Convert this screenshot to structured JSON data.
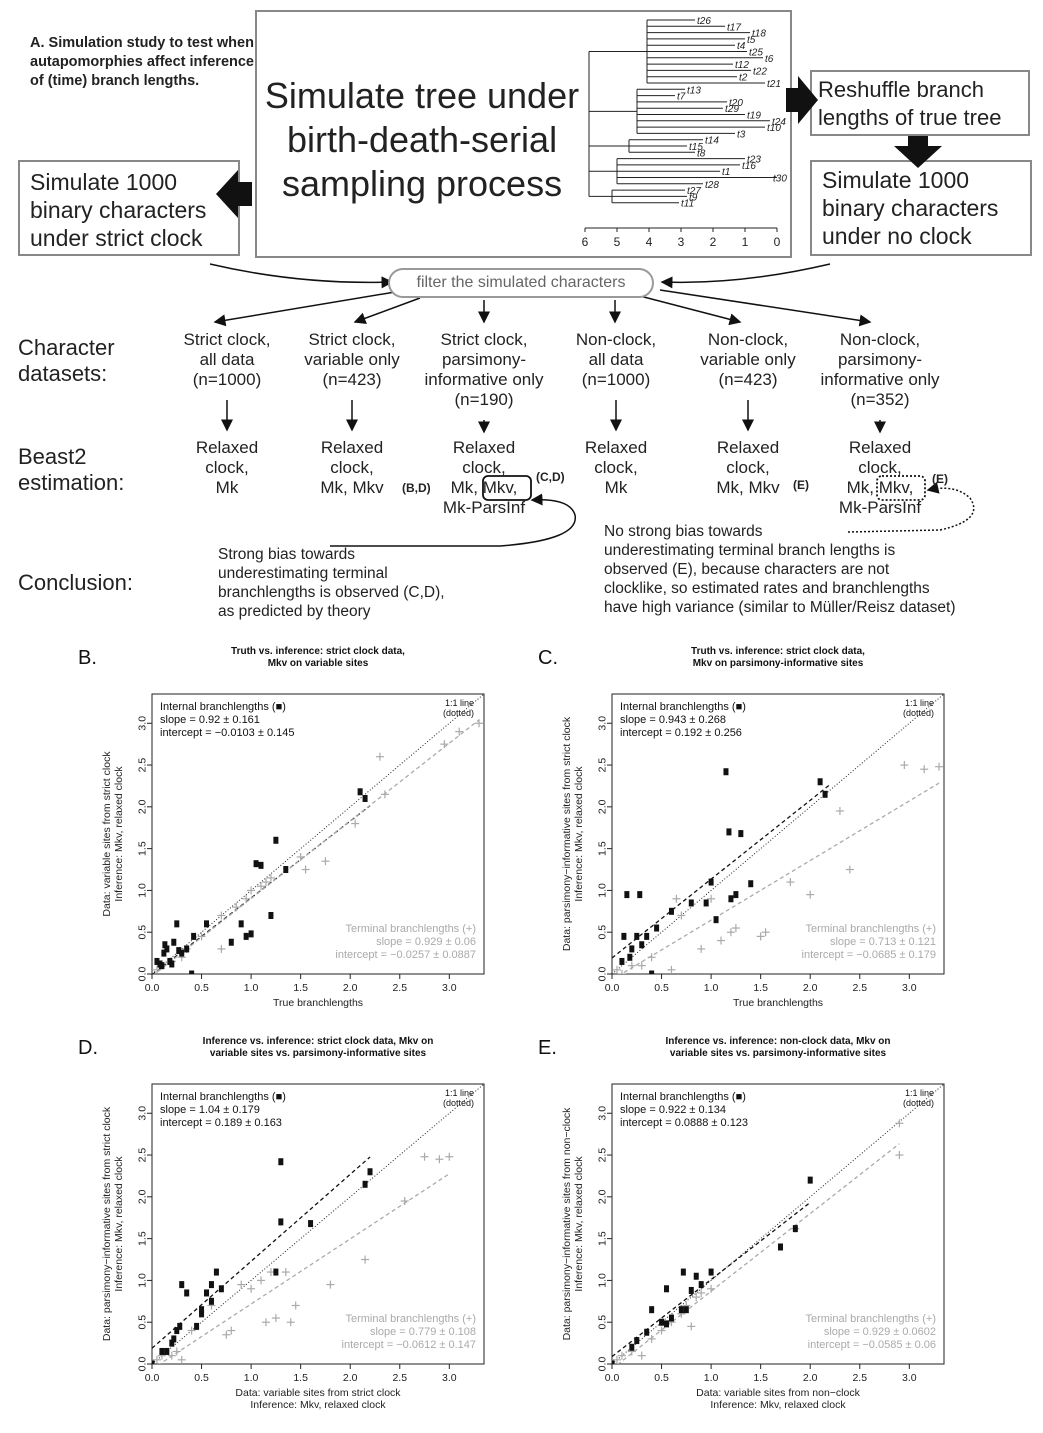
{
  "section_a_title": "A. Simulation study to test when autapomorphies affect inference of (time) branch lengths.",
  "box_simulate_tree": "Simulate tree under birth-death-serial sampling process",
  "box_strict": "Simulate 1000 binary characters under strict clock",
  "box_reshuffle": "Reshuffle branch lengths of true tree",
  "box_noclock": "Simulate 1000 binary characters under no clock",
  "filter_label": "filter the simulated characters",
  "tree_tips": [
    "t26",
    "t17",
    "t18",
    "t5",
    "t4",
    "t25",
    "t6",
    "t12",
    "t22",
    "t2",
    "t21",
    "t13",
    "t7",
    "t20",
    "t29",
    "t19",
    "t24",
    "t10",
    "t3",
    "t14",
    "t15",
    "t8",
    "t23",
    "t16",
    "t1",
    "t30",
    "t28",
    "t27",
    "t9",
    "t11"
  ],
  "tree_axis": [
    "6",
    "5",
    "4",
    "3",
    "2",
    "1",
    "0"
  ],
  "row_labels": {
    "datasets": "Character datasets:",
    "beast": "Beast2 estimation:",
    "conclusion": "Conclusion:"
  },
  "datasets": [
    {
      "l1": "Strict clock,",
      "l2": "all data",
      "l3": "(n=1000)",
      "l4": ""
    },
    {
      "l1": "Strict clock,",
      "l2": "variable only",
      "l3": "(n=423)",
      "l4": ""
    },
    {
      "l1": "Strict clock,",
      "l2": "parsimony-",
      "l3": "informative only",
      "l4": "(n=190)"
    },
    {
      "l1": "Non-clock,",
      "l2": "all data",
      "l3": "(n=1000)",
      "l4": ""
    },
    {
      "l1": "Non-clock,",
      "l2": "variable only",
      "l3": "(n=423)",
      "l4": ""
    },
    {
      "l1": "Non-clock,",
      "l2": "parsimony-",
      "l3": "informative only",
      "l4": "(n=352)"
    }
  ],
  "estimations": [
    {
      "l1": "Relaxed",
      "l2": "clock,",
      "l3": "Mk",
      "l4": "",
      "sup": ""
    },
    {
      "l1": "Relaxed",
      "l2": "clock,",
      "l3": "Mk, Mkv",
      "l4": "",
      "sup": "(B,D)"
    },
    {
      "l1": "Relaxed",
      "l2": "clock,",
      "l3": "Mk, Mkv,",
      "l4": "Mk-ParsInf",
      "sup": "(C,D)"
    },
    {
      "l1": "Relaxed",
      "l2": "clock,",
      "l3": "Mk",
      "l4": "",
      "sup": ""
    },
    {
      "l1": "Relaxed",
      "l2": "clock,",
      "l3": "Mk, Mkv",
      "l4": "",
      "sup": "(E)"
    },
    {
      "l1": "Relaxed",
      "l2": "clock,",
      "l3": "Mk, Mkv,",
      "l4": "Mk-ParsInf",
      "sup": "(E)"
    }
  ],
  "conclusion_left": [
    "Strong bias towards",
    "underestimating terminal",
    "branchlengths is observed (C,D),",
    "as predicted by theory"
  ],
  "conclusion_right": [
    "No strong bias towards",
    "underestimating terminal branch lengths is",
    "observed (E), because characters are not",
    "clocklike, so estimated rates and branchlengths",
    "have high variance (similar to Müller/Reisz dataset)"
  ],
  "plots": [
    {
      "id": "B",
      "letter": "B.",
      "title1": "Truth vs. inference: strict clock data,",
      "title2": "Mkv on variable sites",
      "ylab1": "Data: variable sites from strict clock",
      "ylab2": "Inference: Mkv, relaxed clock",
      "xlab1": "True branchlengths",
      "xlab2": "",
      "internal": {
        "label": "Internal branchlengths (■)",
        "slope": "slope = 0.92 ± 0.161",
        "intercept": "intercept = −0.0103 ± 0.145"
      },
      "terminal": {
        "label": "Terminal branchlengths (+)",
        "slope": "slope = 0.929 ± 0.06",
        "intercept": "intercept = −0.0257 ± 0.0887"
      },
      "line11": [
        "1:1 line",
        "(dotted)"
      ],
      "xticks": [
        "0.0",
        "0.5",
        "1.0",
        "1.5",
        "2.0",
        "2.5",
        "3.0"
      ],
      "yticks": [
        "0.0",
        "0.5",
        "1.0",
        "1.5",
        "2.0",
        "2.5",
        "3.0"
      ],
      "xmax": 3.35,
      "ymax": 3.35,
      "fit_int": [
        0.92,
        -0.0103
      ],
      "fit_term": [
        0.929,
        -0.0257
      ],
      "int_range": [
        0,
        2.2
      ],
      "term_range": [
        0,
        3.3
      ],
      "internal_pts": [
        [
          0.05,
          0.15
        ],
        [
          0.08,
          0.12
        ],
        [
          0.1,
          0.1
        ],
        [
          0.12,
          0.25
        ],
        [
          0.13,
          0.35
        ],
        [
          0.15,
          0.3
        ],
        [
          0.18,
          0.15
        ],
        [
          0.2,
          0.12
        ],
        [
          0.22,
          0.38
        ],
        [
          0.25,
          0.6
        ],
        [
          0.27,
          0.28
        ],
        [
          0.3,
          0.25
        ],
        [
          0.35,
          0.3
        ],
        [
          0.4,
          0.0
        ],
        [
          0.42,
          0.45
        ],
        [
          0.55,
          0.6
        ],
        [
          0.8,
          0.38
        ],
        [
          0.9,
          0.6
        ],
        [
          0.95,
          0.45
        ],
        [
          1.0,
          0.48
        ],
        [
          1.05,
          1.32
        ],
        [
          1.1,
          1.3
        ],
        [
          1.2,
          0.7
        ],
        [
          1.25,
          1.6
        ],
        [
          1.35,
          1.25
        ],
        [
          2.1,
          2.18
        ],
        [
          2.15,
          2.1
        ]
      ],
      "terminal_pts": [
        [
          0.05,
          0.05
        ],
        [
          0.1,
          0.1
        ],
        [
          0.2,
          0.15
        ],
        [
          0.3,
          0.2
        ],
        [
          0.35,
          0.3
        ],
        [
          0.5,
          0.45
        ],
        [
          0.7,
          0.3
        ],
        [
          0.7,
          0.7
        ],
        [
          0.85,
          0.8
        ],
        [
          0.95,
          0.9
        ],
        [
          1.0,
          1.0
        ],
        [
          1.1,
          1.05
        ],
        [
          1.15,
          1.1
        ],
        [
          1.2,
          1.15
        ],
        [
          1.5,
          1.4
        ],
        [
          1.55,
          1.25
        ],
        [
          1.75,
          1.35
        ],
        [
          2.05,
          1.8
        ],
        [
          2.3,
          2.6
        ],
        [
          2.35,
          2.15
        ],
        [
          2.95,
          2.75
        ],
        [
          3.1,
          2.9
        ],
        [
          3.3,
          3.0
        ]
      ]
    },
    {
      "id": "C",
      "letter": "C.",
      "title1": "Truth vs. inference: strict clock data,",
      "title2": "Mkv on parsimony-informative sites",
      "ylab1": "Data: parsimony−informative sites from strict clock",
      "ylab2": "Inference: Mkv, relaxed clock",
      "xlab1": "True branchlengths",
      "xlab2": "",
      "internal": {
        "label": "Internal branchlengths (■)",
        "slope": "slope = 0.943 ± 0.268",
        "intercept": "intercept = 0.192 ± 0.256"
      },
      "terminal": {
        "label": "Terminal branchlengths (+)",
        "slope": "slope = 0.713 ± 0.121",
        "intercept": "intercept = −0.0685 ± 0.179"
      },
      "line11": [
        "1:1 line",
        "(dotted)"
      ],
      "xticks": [
        "0.0",
        "0.5",
        "1.0",
        "1.5",
        "2.0",
        "2.5",
        "3.0"
      ],
      "yticks": [
        "0.0",
        "0.5",
        "1.0",
        "1.5",
        "2.0",
        "2.5",
        "3.0"
      ],
      "xmax": 3.35,
      "ymax": 3.35,
      "fit_int": [
        0.943,
        0.192
      ],
      "fit_term": [
        0.713,
        -0.0685
      ],
      "int_range": [
        0,
        2.2
      ],
      "term_range": [
        0,
        3.3
      ],
      "internal_pts": [
        [
          0.1,
          0.15
        ],
        [
          0.12,
          0.45
        ],
        [
          0.15,
          0.95
        ],
        [
          0.18,
          0.2
        ],
        [
          0.2,
          0.3
        ],
        [
          0.25,
          0.45
        ],
        [
          0.28,
          0.95
        ],
        [
          0.3,
          0.35
        ],
        [
          0.35,
          0.45
        ],
        [
          0.4,
          0.0
        ],
        [
          0.45,
          0.55
        ],
        [
          0.6,
          0.75
        ],
        [
          0.8,
          0.85
        ],
        [
          0.95,
          0.85
        ],
        [
          1.0,
          1.1
        ],
        [
          1.05,
          0.65
        ],
        [
          1.15,
          2.42
        ],
        [
          1.18,
          1.7
        ],
        [
          1.2,
          0.9
        ],
        [
          1.25,
          0.95
        ],
        [
          1.3,
          1.68
        ],
        [
          1.4,
          1.08
        ],
        [
          2.1,
          2.3
        ],
        [
          2.15,
          2.15
        ]
      ],
      "terminal_pts": [
        [
          0.05,
          0.05
        ],
        [
          0.1,
          0.0
        ],
        [
          0.2,
          0.1
        ],
        [
          0.3,
          0.1
        ],
        [
          0.4,
          0.2
        ],
        [
          0.6,
          0.05
        ],
        [
          0.65,
          0.9
        ],
        [
          0.7,
          0.7
        ],
        [
          0.9,
          0.3
        ],
        [
          1.0,
          0.9
        ],
        [
          1.1,
          0.4
        ],
        [
          1.2,
          0.5
        ],
        [
          1.25,
          0.55
        ],
        [
          1.5,
          0.45
        ],
        [
          1.55,
          0.5
        ],
        [
          1.8,
          1.1
        ],
        [
          2.0,
          0.95
        ],
        [
          2.3,
          1.95
        ],
        [
          2.4,
          1.25
        ],
        [
          2.95,
          2.5
        ],
        [
          3.15,
          2.45
        ],
        [
          3.3,
          2.48
        ]
      ]
    },
    {
      "id": "D",
      "letter": "D.",
      "title1": "Inference vs. inference: strict clock data, Mkv on",
      "title2": "variable sites vs. parsimony-informative sites",
      "ylab1": "Data: parsimony−informative sites from strict clock",
      "ylab2": "Inference: Mkv, relaxed clock",
      "xlab1": "Data: variable sites from strict clock",
      "xlab2": "Inference: Mkv, relaxed clock",
      "internal": {
        "label": "Internal branchlengths (■)",
        "slope": "slope = 1.04 ± 0.179",
        "intercept": "intercept = 0.189 ± 0.163"
      },
      "terminal": {
        "label": "Terminal branchlengths (+)",
        "slope": "slope = 0.779 ± 0.108",
        "intercept": "intercept = −0.0612 ± 0.147"
      },
      "line11": [
        "1:1 line",
        "(dotted)"
      ],
      "xticks": [
        "0.0",
        "0.5",
        "1.0",
        "1.5",
        "2.0",
        "2.5",
        "3.0"
      ],
      "yticks": [
        "0.0",
        "0.5",
        "1.0",
        "1.5",
        "2.0",
        "2.5",
        "3.0"
      ],
      "xmax": 3.35,
      "ymax": 3.35,
      "fit_int": [
        1.04,
        0.189
      ],
      "fit_term": [
        0.779,
        -0.0612
      ],
      "int_range": [
        0,
        2.2
      ],
      "term_range": [
        0,
        3.0
      ],
      "internal_pts": [
        [
          0.0,
          0.0
        ],
        [
          0.1,
          0.15
        ],
        [
          0.15,
          0.15
        ],
        [
          0.2,
          0.25
        ],
        [
          0.22,
          0.3
        ],
        [
          0.25,
          0.4
        ],
        [
          0.28,
          0.45
        ],
        [
          0.3,
          0.95
        ],
        [
          0.35,
          0.85
        ],
        [
          0.45,
          0.45
        ],
        [
          0.5,
          0.6
        ],
        [
          0.5,
          0.65
        ],
        [
          0.55,
          0.85
        ],
        [
          0.6,
          0.95
        ],
        [
          0.6,
          0.75
        ],
        [
          0.65,
          1.1
        ],
        [
          0.7,
          0.9
        ],
        [
          1.25,
          1.1
        ],
        [
          1.3,
          2.42
        ],
        [
          1.3,
          1.7
        ],
        [
          1.6,
          1.68
        ],
        [
          2.15,
          2.15
        ],
        [
          2.2,
          2.3
        ]
      ],
      "terminal_pts": [
        [
          0.05,
          0.05
        ],
        [
          0.1,
          0.1
        ],
        [
          0.2,
          0.1
        ],
        [
          0.25,
          0.15
        ],
        [
          0.3,
          0.05
        ],
        [
          0.4,
          0.4
        ],
        [
          0.6,
          0.7
        ],
        [
          0.75,
          0.35
        ],
        [
          0.8,
          0.4
        ],
        [
          0.9,
          0.95
        ],
        [
          1.0,
          0.9
        ],
        [
          1.1,
          1.0
        ],
        [
          1.15,
          0.5
        ],
        [
          1.2,
          1.1
        ],
        [
          1.25,
          0.55
        ],
        [
          1.35,
          1.1
        ],
        [
          1.4,
          0.5
        ],
        [
          1.45,
          0.7
        ],
        [
          1.8,
          0.95
        ],
        [
          2.15,
          1.25
        ],
        [
          2.55,
          1.95
        ],
        [
          2.75,
          2.48
        ],
        [
          2.9,
          2.45
        ],
        [
          3.0,
          2.48
        ]
      ]
    },
    {
      "id": "E",
      "letter": "E.",
      "title1": "Inference vs. inference: non-clock data, Mkv on",
      "title2": "variable sites vs. parsimony-informative sites",
      "ylab1": "Data: parsimony−informative sites from non−clock",
      "ylab2": "Inference: Mkv, relaxed clock",
      "xlab1": "Data: variable sites from non−clock",
      "xlab2": "Inference: Mkv, relaxed clock",
      "internal": {
        "label": "Internal branchlengths (■)",
        "slope": "slope = 0.922 ± 0.134",
        "intercept": "intercept = 0.0888 ± 0.123"
      },
      "terminal": {
        "label": "Terminal branchlengths (+)",
        "slope": "slope = 0.929 ± 0.0602",
        "intercept": "intercept = −0.0585 ± 0.06"
      },
      "line11": [
        "1:1 line",
        "(dotted)"
      ],
      "xticks": [
        "0.0",
        "0.5",
        "1.0",
        "1.5",
        "2.0",
        "2.5",
        "3.0"
      ],
      "yticks": [
        "0.0",
        "0.5",
        "1.0",
        "1.5",
        "2.0",
        "2.5",
        "3.0"
      ],
      "xmax": 3.35,
      "ymax": 3.35,
      "fit_int": [
        0.922,
        0.0888
      ],
      "fit_term": [
        0.929,
        -0.0585
      ],
      "int_range": [
        0,
        2.0
      ],
      "term_range": [
        0,
        2.9
      ],
      "internal_pts": [
        [
          0.0,
          0.0
        ],
        [
          0.2,
          0.2
        ],
        [
          0.25,
          0.28
        ],
        [
          0.35,
          0.38
        ],
        [
          0.4,
          0.65
        ],
        [
          0.5,
          0.5
        ],
        [
          0.55,
          0.48
        ],
        [
          0.55,
          0.9
        ],
        [
          0.6,
          0.55
        ],
        [
          0.7,
          0.65
        ],
        [
          0.72,
          1.1
        ],
        [
          0.75,
          0.65
        ],
        [
          0.8,
          0.88
        ],
        [
          0.85,
          1.05
        ],
        [
          0.9,
          0.95
        ],
        [
          1.0,
          1.1
        ],
        [
          1.7,
          1.4
        ],
        [
          1.85,
          1.62
        ],
        [
          2.0,
          2.2
        ]
      ],
      "terminal_pts": [
        [
          0.05,
          0.05
        ],
        [
          0.1,
          0.1
        ],
        [
          0.2,
          0.15
        ],
        [
          0.3,
          0.1
        ],
        [
          0.4,
          0.3
        ],
        [
          0.5,
          0.4
        ],
        [
          0.6,
          0.5
        ],
        [
          0.7,
          0.6
        ],
        [
          0.75,
          0.7
        ],
        [
          0.8,
          0.45
        ],
        [
          0.85,
          0.8
        ],
        [
          0.9,
          0.85
        ],
        [
          1.0,
          0.9
        ],
        [
          1.85,
          1.62
        ],
        [
          2.9,
          2.5
        ],
        [
          2.9,
          2.88
        ]
      ]
    }
  ]
}
